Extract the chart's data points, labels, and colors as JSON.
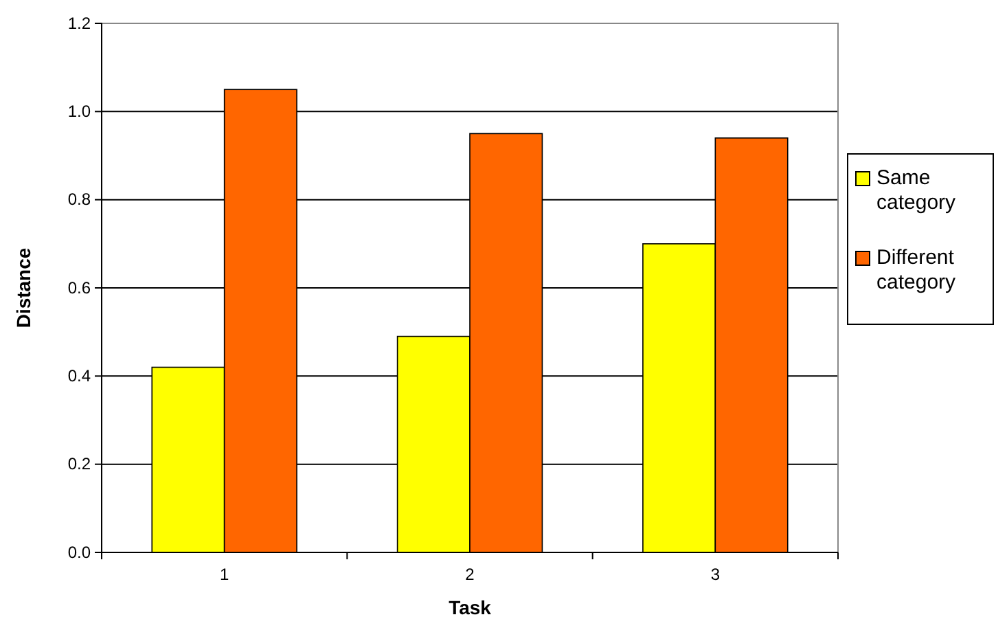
{
  "chart_data": {
    "type": "bar",
    "xlabel": "Task",
    "ylabel": "Distance",
    "categories": [
      "1",
      "2",
      "3"
    ],
    "series": [
      {
        "name": "Same category",
        "color": "#ffff00",
        "values": [
          0.42,
          0.49,
          0.7
        ]
      },
      {
        "name": "Different category",
        "color": "#ff6600",
        "values": [
          1.05,
          0.95,
          0.94
        ]
      }
    ],
    "ylim": [
      0,
      1.2
    ],
    "yticks": [
      {
        "value": 0,
        "label": "0.0"
      },
      {
        "value": 0.2,
        "label": "0.2"
      },
      {
        "value": 0.4,
        "label": "0.4"
      },
      {
        "value": 0.6,
        "label": "0.6"
      },
      {
        "value": 0.8,
        "label": "0.8"
      },
      {
        "value": 1.0,
        "label": "1.0"
      },
      {
        "value": 1.2,
        "label": "1.2"
      }
    ],
    "grid": "y",
    "legend": "right"
  }
}
